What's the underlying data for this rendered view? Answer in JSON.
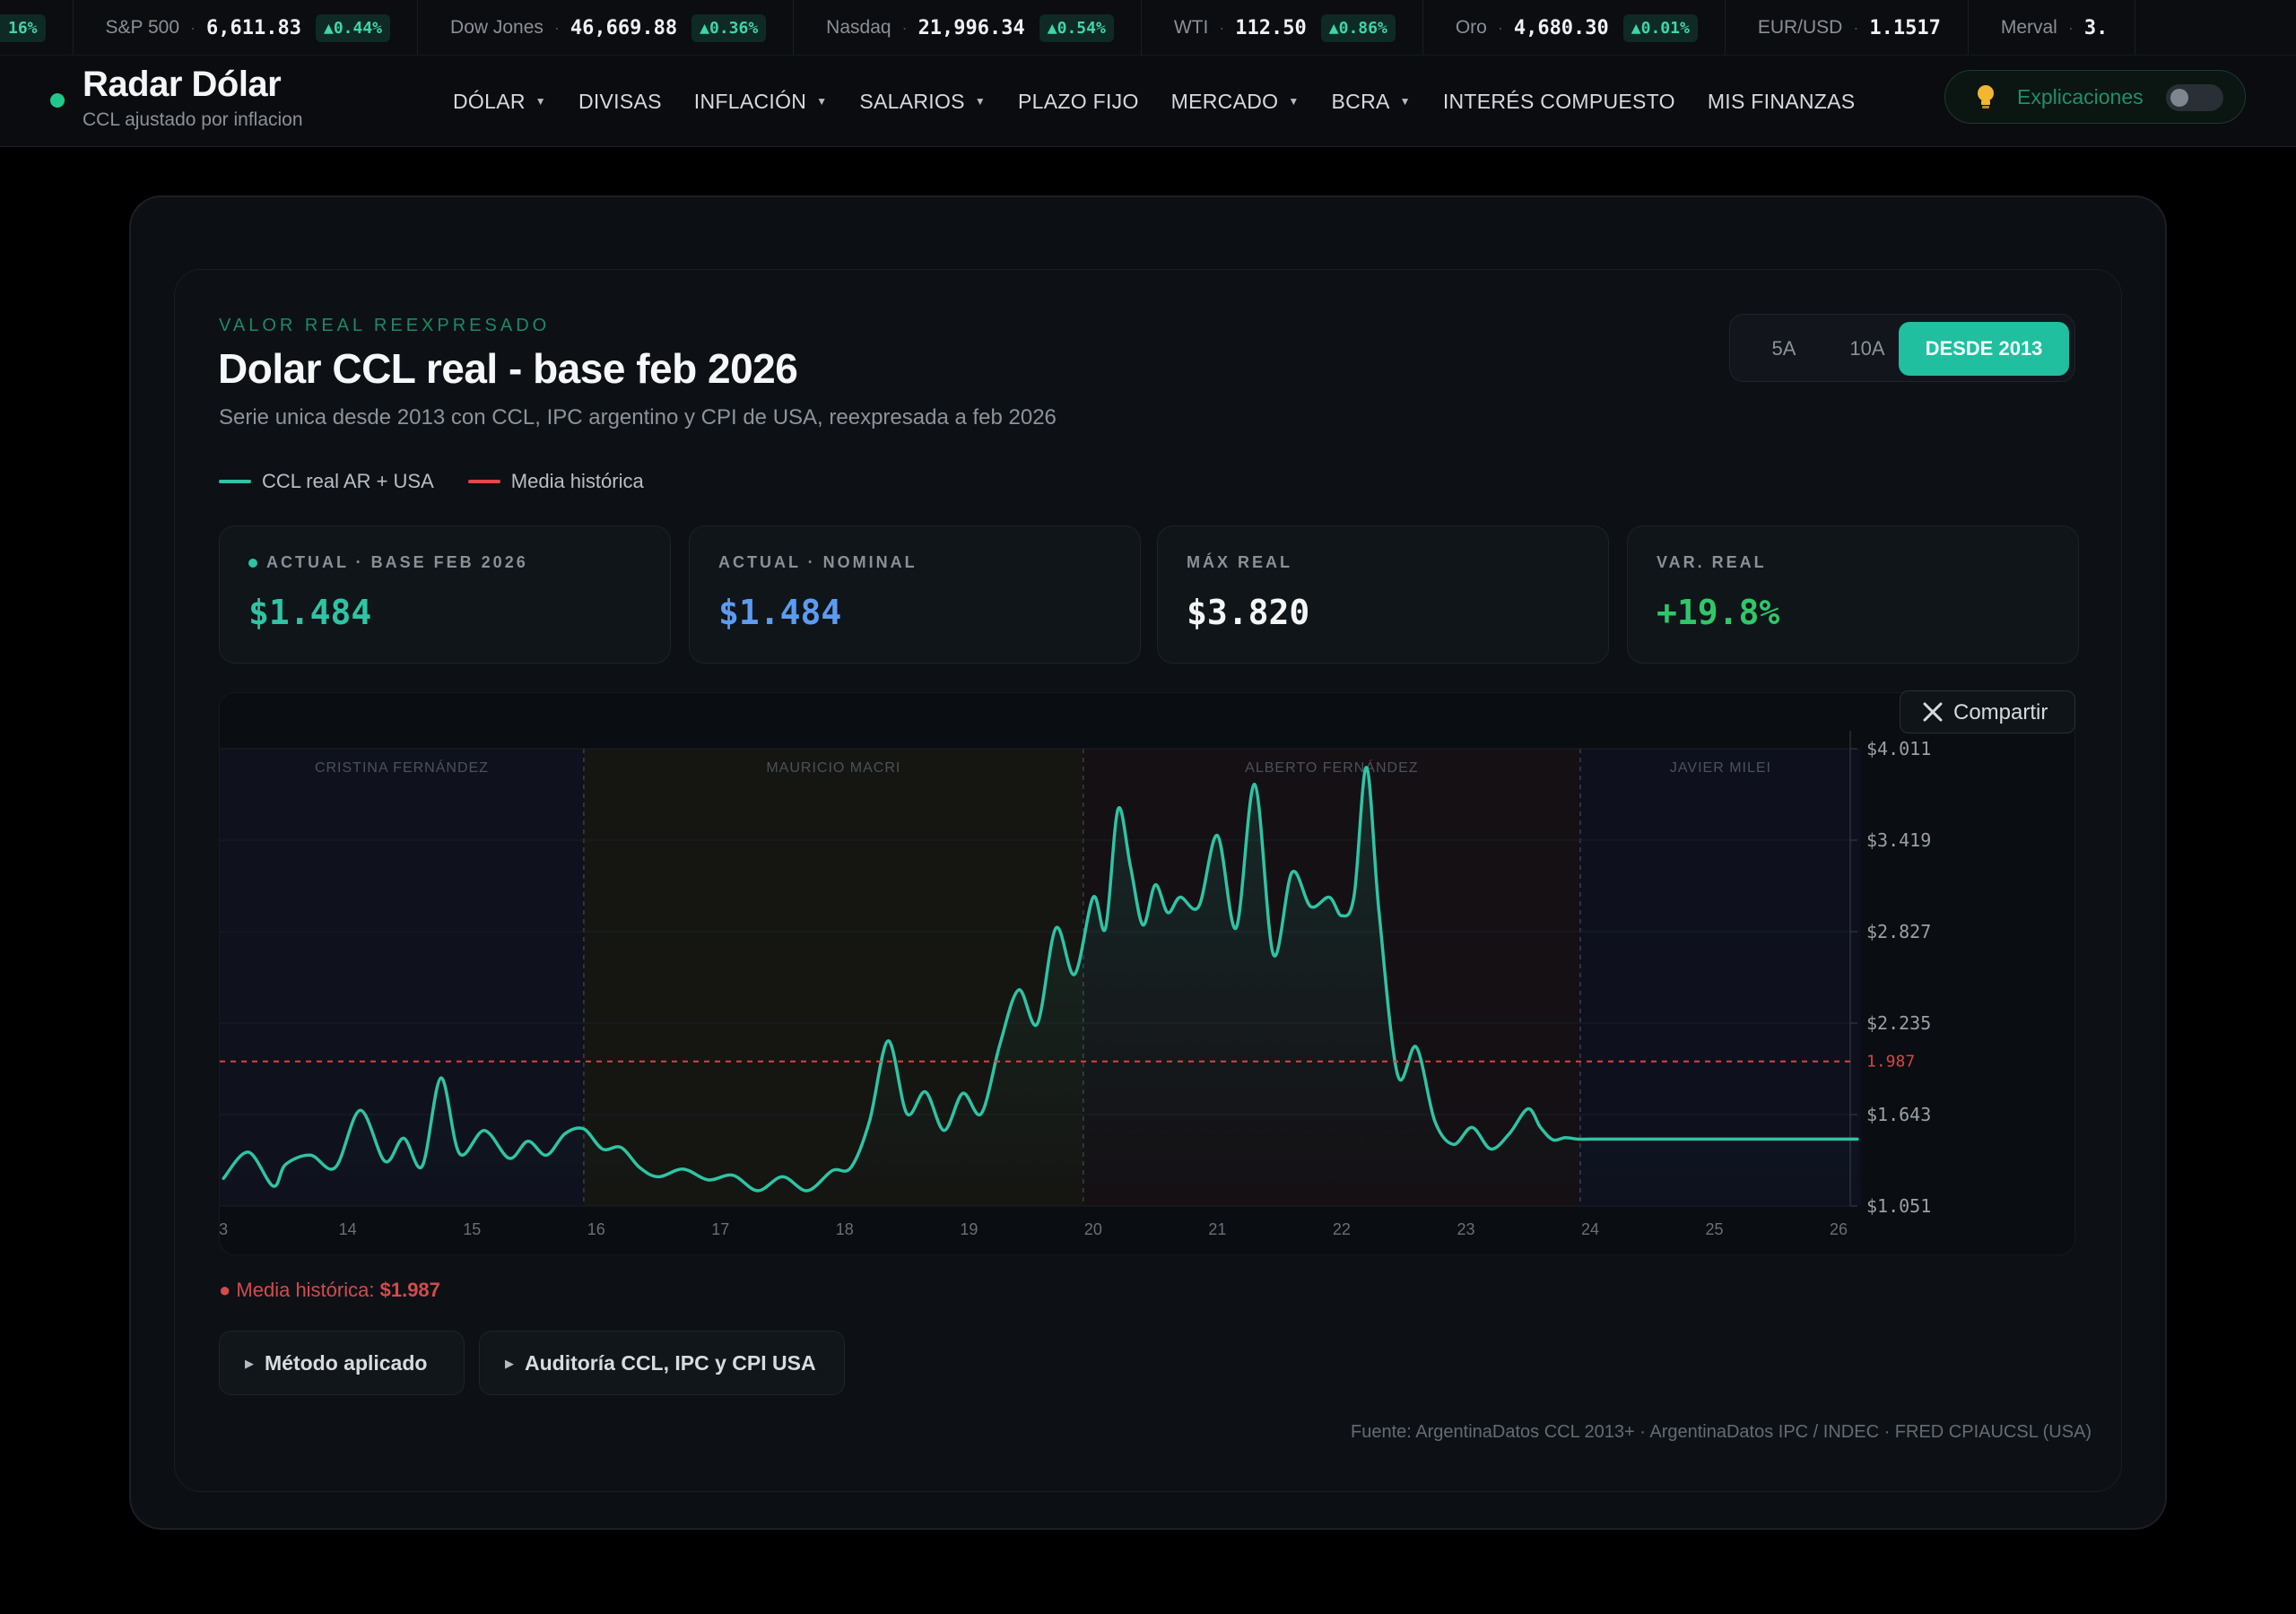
{
  "ticker": [
    {
      "name": "",
      "value": "",
      "change": "16%"
    },
    {
      "name": "S&P 500",
      "value": "6,611.83",
      "change": "▲0.44%"
    },
    {
      "name": "Dow Jones",
      "value": "46,669.88",
      "change": "▲0.36%"
    },
    {
      "name": "Nasdaq",
      "value": "21,996.34",
      "change": "▲0.54%"
    },
    {
      "name": "WTI",
      "value": "112.50",
      "change": "▲0.86%"
    },
    {
      "name": "Oro",
      "value": "4,680.30",
      "change": "▲0.01%"
    },
    {
      "name": "EUR/USD",
      "value": "1.1517",
      "change": ""
    },
    {
      "name": "Merval",
      "value": "3.",
      "change": ""
    }
  ],
  "brand": {
    "title": "Radar Dólar",
    "subtitle": "CCL ajustado por inflacion"
  },
  "menu": [
    {
      "label": "DÓLAR",
      "dropdown": true
    },
    {
      "label": "DIVISAS",
      "dropdown": false
    },
    {
      "label": "INFLACIÓN",
      "dropdown": true
    },
    {
      "label": "SALARIOS",
      "dropdown": true
    },
    {
      "label": "PLAZO FIJO",
      "dropdown": false
    },
    {
      "label": "MERCADO",
      "dropdown": true
    },
    {
      "label": "BCRA",
      "dropdown": true
    },
    {
      "label": "INTERÉS COMPUESTO",
      "dropdown": false
    },
    {
      "label": "MIS FINANZAS",
      "dropdown": false
    }
  ],
  "explicaciones": {
    "label": "Explicaciones",
    "enabled": false
  },
  "card": {
    "eyebrow": "VALOR REAL REEXPRESADO",
    "title": "Dolar CCL real - base feb 2026",
    "subtitle": "Serie unica desde 2013 con CCL, IPC argentino y CPI de USA, reexpresada a feb 2026"
  },
  "ranges": [
    {
      "label": "5A",
      "active": false
    },
    {
      "label": "10A",
      "active": false
    },
    {
      "label": "DESDE 2013",
      "active": true
    }
  ],
  "legend": [
    {
      "label": "CCL real AR + USA",
      "color": "#2ec4a4"
    },
    {
      "label": "Media histórica",
      "color": "#e0484b"
    }
  ],
  "stats": [
    {
      "label": "ACTUAL · BASE FEB 2026",
      "value": "$1.484",
      "color": "#2ec4a4",
      "dot": true
    },
    {
      "label": "ACTUAL · NOMINAL",
      "value": "$1.484",
      "color": "#5b9cf0",
      "dot": false
    },
    {
      "label": "MÁX REAL",
      "value": "$3.820",
      "color": "#f3f5f7",
      "dot": false
    },
    {
      "label": "VAR. REAL",
      "value": "+19.8%",
      "color": "#2fc76a",
      "dot": false
    }
  ],
  "share_label": "Compartir",
  "chart_data": {
    "type": "line",
    "series": [
      {
        "name": "CCL real AR + USA",
        "color": "#2ec4a4",
        "x": [
          2013.0,
          2013.2,
          2013.4,
          2013.5,
          2013.7,
          2013.9,
          2014.1,
          2014.3,
          2014.45,
          2014.6,
          2014.75,
          2014.9,
          2015.1,
          2015.3,
          2015.45,
          2015.6,
          2015.75,
          2015.9,
          2016.05,
          2016.2,
          2016.35,
          2016.5,
          2016.7,
          2016.9,
          2017.1,
          2017.3,
          2017.5,
          2017.7,
          2017.9,
          2018.05,
          2018.2,
          2018.35,
          2018.5,
          2018.65,
          2018.8,
          2018.95,
          2019.1,
          2019.25,
          2019.4,
          2019.55,
          2019.7,
          2019.85,
          2020.0,
          2020.1,
          2020.2,
          2020.3,
          2020.4,
          2020.5,
          2020.6,
          2020.7,
          2020.85,
          2021.0,
          2021.15,
          2021.3,
          2021.45,
          2021.6,
          2021.75,
          2021.9,
          2022.0,
          2022.1,
          2022.2,
          2022.3,
          2022.45,
          2022.6,
          2022.75,
          2022.9,
          2023.05,
          2023.2,
          2023.35,
          2023.5,
          2023.6,
          2023.7,
          2023.8,
          2023.9,
          2024.0,
          2024.1,
          2024.25,
          2024.4,
          2024.55,
          2024.7,
          2024.85,
          2025.0,
          2025.15,
          2025.3,
          2025.45,
          2025.6,
          2025.75,
          2025.9,
          2026.05,
          2026.15
        ],
        "y": [
          1230,
          1400,
          1180,
          1320,
          1380,
          1300,
          1670,
          1340,
          1490,
          1310,
          1880,
          1390,
          1540,
          1360,
          1470,
          1380,
          1520,
          1550,
          1420,
          1430,
          1300,
          1240,
          1290,
          1220,
          1250,
          1150,
          1240,
          1150,
          1280,
          1300,
          1600,
          2120,
          1650,
          1790,
          1540,
          1780,
          1650,
          2100,
          2450,
          2230,
          2850,
          2550,
          3050,
          2850,
          3620,
          3250,
          2870,
          3130,
          2950,
          3050,
          2990,
          3450,
          2850,
          3780,
          2680,
          3210,
          2990,
          3050,
          2930,
          3060,
          3890,
          2960,
          1900,
          2080,
          1600,
          1450,
          1560,
          1420,
          1520,
          1680,
          1560,
          1480,
          1494,
          1484,
          1484,
          1484,
          1484,
          1484,
          1484,
          1484,
          1484,
          1484,
          1484,
          1484,
          1484,
          1484,
          1484,
          1484,
          1484,
          1484
        ]
      }
    ],
    "mean": 1987,
    "mean_label": "1.987",
    "y_ticks": [
      "$4.011",
      "$3.419",
      "$2.827",
      "$2.235",
      "$1.643",
      "$1.051"
    ],
    "y_tick_values": [
      4011,
      3419,
      2827,
      2235,
      1643,
      1051
    ],
    "x_ticks": [
      "3",
      "14",
      "15",
      "16",
      "17",
      "18",
      "19",
      "20",
      "21",
      "22",
      "23",
      "24",
      "25",
      "26"
    ],
    "x_tick_values": [
      2013,
      2014,
      2015,
      2016,
      2017,
      2018,
      2019,
      2020,
      2021,
      2022,
      2023,
      2024,
      2025,
      2026
    ],
    "ylim": [
      1051,
      4011
    ],
    "periods": [
      {
        "label": "CRISTINA FERNÁNDEZ",
        "from": 2012.97,
        "to": 2015.9,
        "color": "#6c63ff"
      },
      {
        "label": "MAURICIO MACRI",
        "from": 2015.9,
        "to": 2019.92,
        "color": "#e3b022"
      },
      {
        "label": "ALBERTO FERNÁNDEZ",
        "from": 2019.92,
        "to": 2023.92,
        "color": "#e04848"
      },
      {
        "label": "JAVIER MILEI",
        "from": 2023.92,
        "to": 2026.18,
        "color": "#5a6bff"
      }
    ],
    "grid": true
  },
  "mean_note": {
    "label": "Media histórica:",
    "value": "$1.987"
  },
  "disclosures": [
    "Método aplicado",
    "Auditoría CCL, IPC y CPI USA"
  ],
  "source": "Fuente: ArgentinaDatos CCL 2013+ · ArgentinaDatos IPC / INDEC · FRED CPIAUCSL (USA)"
}
